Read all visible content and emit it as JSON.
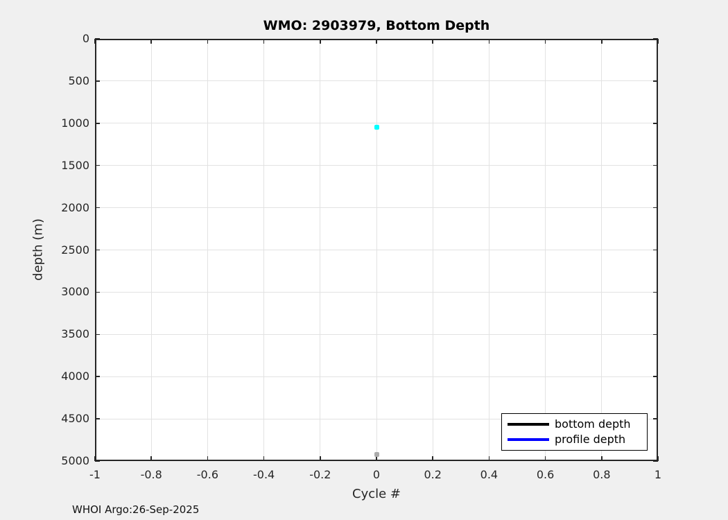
{
  "window": {
    "background": "#f0f0f0"
  },
  "watermark": {
    "text": "WHOI Argo:26-Sep-2025"
  },
  "chart_data": {
    "type": "scatter",
    "title": "WMO: 2903979, Bottom Depth",
    "xlabel": "Cycle #",
    "ylabel": "depth (m)",
    "xlim": [
      -1,
      1
    ],
    "ylim": [
      0,
      5000
    ],
    "y_axis_reversed": true,
    "grid": true,
    "box": true,
    "x_tick_values": [
      -1,
      -0.8,
      -0.6,
      -0.4,
      -0.2,
      0,
      0.2,
      0.4,
      0.6,
      0.8,
      1
    ],
    "x_tick_labels": [
      "-1",
      "-0.8",
      "-0.6",
      "-0.4",
      "-0.2",
      "0",
      "0.2",
      "0.4",
      "0.6",
      "0.8",
      "1"
    ],
    "y_tick_values": [
      0,
      500,
      1000,
      1500,
      2000,
      2500,
      3000,
      3500,
      4000,
      4500,
      5000
    ],
    "y_tick_labels": [
      "0",
      "500",
      "1000",
      "1500",
      "2000",
      "2500",
      "3000",
      "3500",
      "4000",
      "4500",
      "5000"
    ],
    "series": [
      {
        "name": "profile-depth-point",
        "x": [
          0
        ],
        "y": [
          1045
        ],
        "marker": "dot",
        "color": "#00ffff"
      },
      {
        "name": "bottom-depth-point",
        "x": [
          0
        ],
        "y": [
          4920
        ],
        "marker": "dot",
        "color": "#ababab"
      }
    ],
    "legend": {
      "position": "bottom-right",
      "entries": [
        {
          "label": "bottom depth",
          "color": "#000000"
        },
        {
          "label": "profile depth",
          "color": "#0000ff"
        }
      ]
    },
    "colors": {
      "plot_background": "#ffffff",
      "grid": "#e2e2e2",
      "axis": "#262626",
      "tick_label": "#262626",
      "title": "#000000"
    }
  }
}
